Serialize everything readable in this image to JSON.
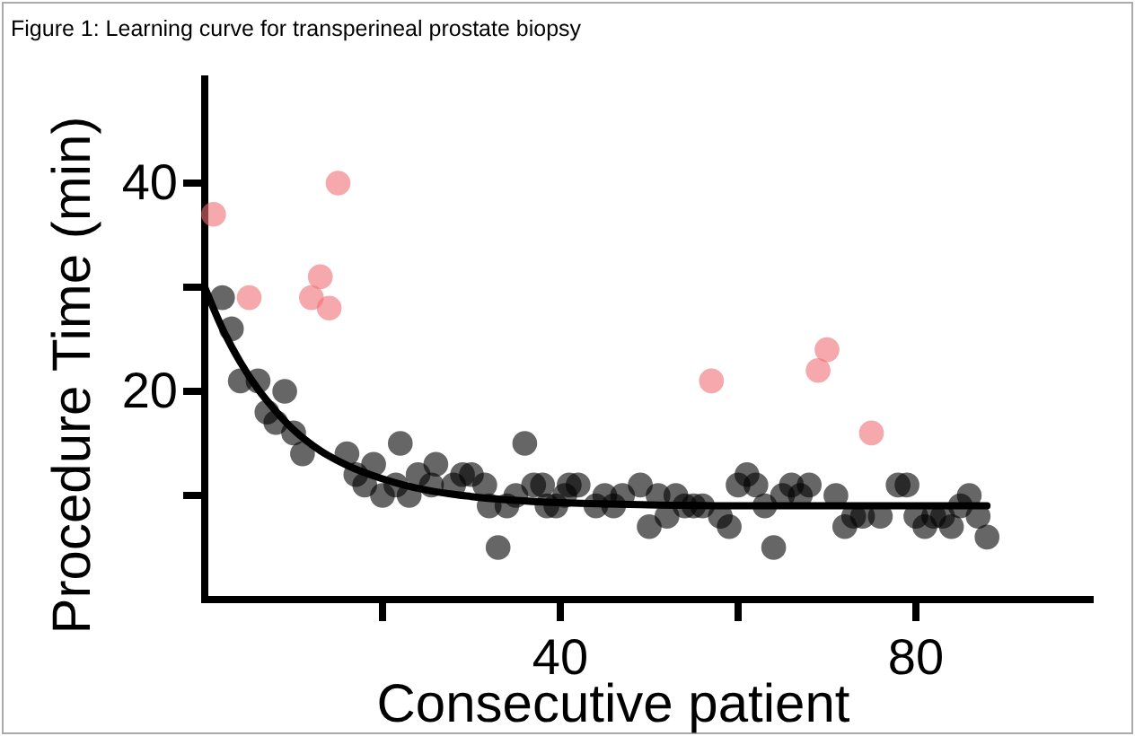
{
  "chart_data": {
    "type": "scatter",
    "title": "Figure 1: Learning curve for transperineal prostate biopsy",
    "xlabel": "Consecutive patient",
    "ylabel": "Procedure Time (min)",
    "xlim": [
      0,
      100
    ],
    "xticks": [
      {
        "value": 20,
        "label": null
      },
      40,
      {
        "value": 60,
        "label": null
      },
      80
    ],
    "ylim": [
      0,
      50
    ],
    "yticks": [
      {
        "value": 10,
        "label": null
      },
      20,
      {
        "value": 30,
        "label": null
      },
      40
    ],
    "grid": false,
    "marker": "circle",
    "series": [
      {
        "color": "#000000",
        "x": [
          2,
          3,
          4,
          6,
          9,
          7,
          8,
          10,
          11,
          16,
          17,
          18,
          19,
          20,
          22,
          21.5,
          23,
          24,
          26,
          25.5,
          28,
          29,
          30,
          31.5,
          32,
          33,
          34,
          36,
          35,
          37,
          38,
          38.5,
          39.5,
          41,
          40.5,
          42,
          44,
          45,
          46,
          47,
          49,
          50,
          51,
          52,
          53,
          54,
          55,
          56,
          58,
          59,
          60,
          61,
          62,
          63,
          64,
          65,
          66,
          67,
          68,
          71,
          72,
          73,
          74,
          76,
          78,
          79,
          80,
          81,
          82,
          83,
          84,
          85,
          86,
          87,
          88
        ],
        "values": [
          29,
          26,
          21,
          21,
          20,
          18,
          17,
          16,
          14,
          14,
          12,
          11,
          13,
          10,
          15,
          11,
          10,
          12,
          13,
          11,
          11,
          12,
          12,
          11,
          9,
          5,
          9,
          15,
          10,
          11,
          11,
          9,
          9,
          11,
          10,
          11,
          9,
          10,
          9,
          10,
          11,
          7,
          10,
          8,
          10,
          9,
          9,
          9,
          8,
          7,
          11,
          12,
          11,
          9,
          5,
          10,
          11,
          10,
          11,
          10,
          7,
          8,
          8,
          8,
          11,
          11,
          8,
          7,
          8,
          8,
          7,
          9,
          10,
          8,
          6
        ]
      },
      {
        "color": "#f07075",
        "x": [
          1,
          5,
          12,
          13,
          14,
          15,
          57,
          69,
          70,
          75
        ],
        "values": [
          37,
          29,
          29,
          31,
          28,
          40,
          21,
          22,
          24,
          16
        ]
      },
      {
        "type": "line",
        "color": "#000000",
        "marker": "none",
        "line_style": "solid",
        "x": [
          0,
          2,
          4,
          6,
          8,
          10,
          13,
          16,
          20,
          25,
          30,
          40,
          50,
          60,
          70,
          88
        ],
        "values": [
          30,
          26,
          22.8,
          20.2,
          18.1,
          16.3,
          14.3,
          12.9,
          11.6,
          10.5,
          9.9,
          9.3,
          9.1,
          9,
          9,
          9
        ]
      }
    ]
  }
}
